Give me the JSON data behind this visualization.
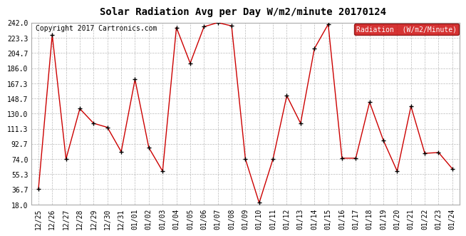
{
  "title": "Solar Radiation Avg per Day W/m2/minute 20170124",
  "copyright": "Copyright 2017 Cartronics.com",
  "legend_label": "Radiation  (W/m2/Minute)",
  "dates": [
    "12/25",
    "12/26",
    "12/27",
    "12/28",
    "12/29",
    "12/30",
    "12/31",
    "01/01",
    "01/02",
    "01/03",
    "01/04",
    "01/05",
    "01/06",
    "01/07",
    "01/08",
    "01/09",
    "01/10",
    "01/11",
    "01/12",
    "01/13",
    "01/14",
    "01/15",
    "01/16",
    "01/17",
    "01/18",
    "01/19",
    "01/20",
    "01/21",
    "01/22",
    "01/23",
    "01/24"
  ],
  "values": [
    36.7,
    227.0,
    74.0,
    136.0,
    118.0,
    113.0,
    83.0,
    172.0,
    88.0,
    59.0,
    236.0,
    192.0,
    237.0,
    242.0,
    238.0,
    74.0,
    20.0,
    74.0,
    152.0,
    118.0,
    210.0,
    240.0,
    75.0,
    75.0,
    144.0,
    97.0,
    59.0,
    139.0,
    81.0,
    82.0,
    62.0
  ],
  "yticks": [
    18.0,
    36.7,
    55.3,
    74.0,
    92.7,
    111.3,
    130.0,
    148.7,
    167.3,
    186.0,
    204.7,
    223.3,
    242.0
  ],
  "ymin": 18.0,
  "ymax": 242.0,
  "line_color": "#cc0000",
  "marker_color": "#000000",
  "bg_color": "#ffffff",
  "grid_color": "#bbbbbb",
  "title_fontsize": 10,
  "copyright_fontsize": 7,
  "legend_fontsize": 7,
  "tick_fontsize": 7,
  "legend_bg": "#cc0000",
  "legend_text_color": "#ffffff"
}
